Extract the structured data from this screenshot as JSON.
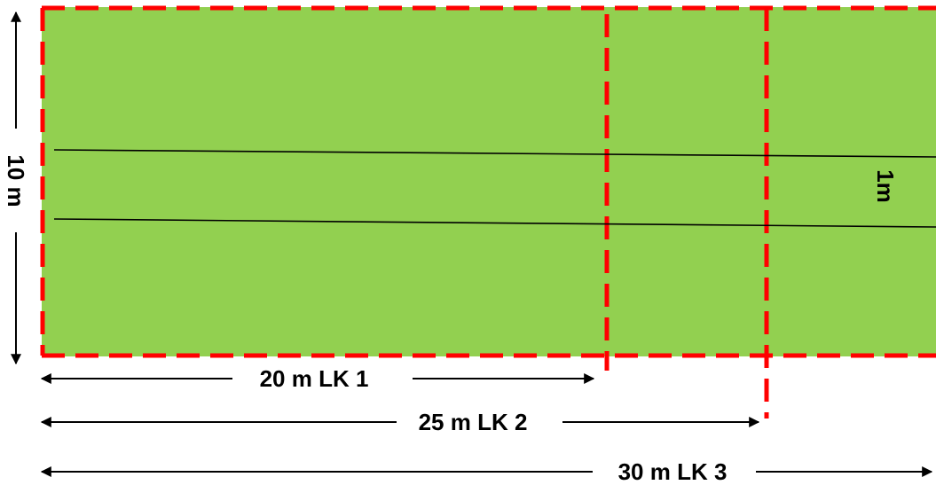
{
  "diagram": {
    "height_label": "10 m",
    "strip_width_label": "1m",
    "dimensions": [
      {
        "label": "20 m LK 1"
      },
      {
        "label": "25 m LK 2"
      },
      {
        "label": "30 m LK 3"
      }
    ]
  },
  "colors": {
    "field": "#92D050",
    "boundary": "#FF0000",
    "line": "#000000",
    "background": "#FFFFFF"
  }
}
